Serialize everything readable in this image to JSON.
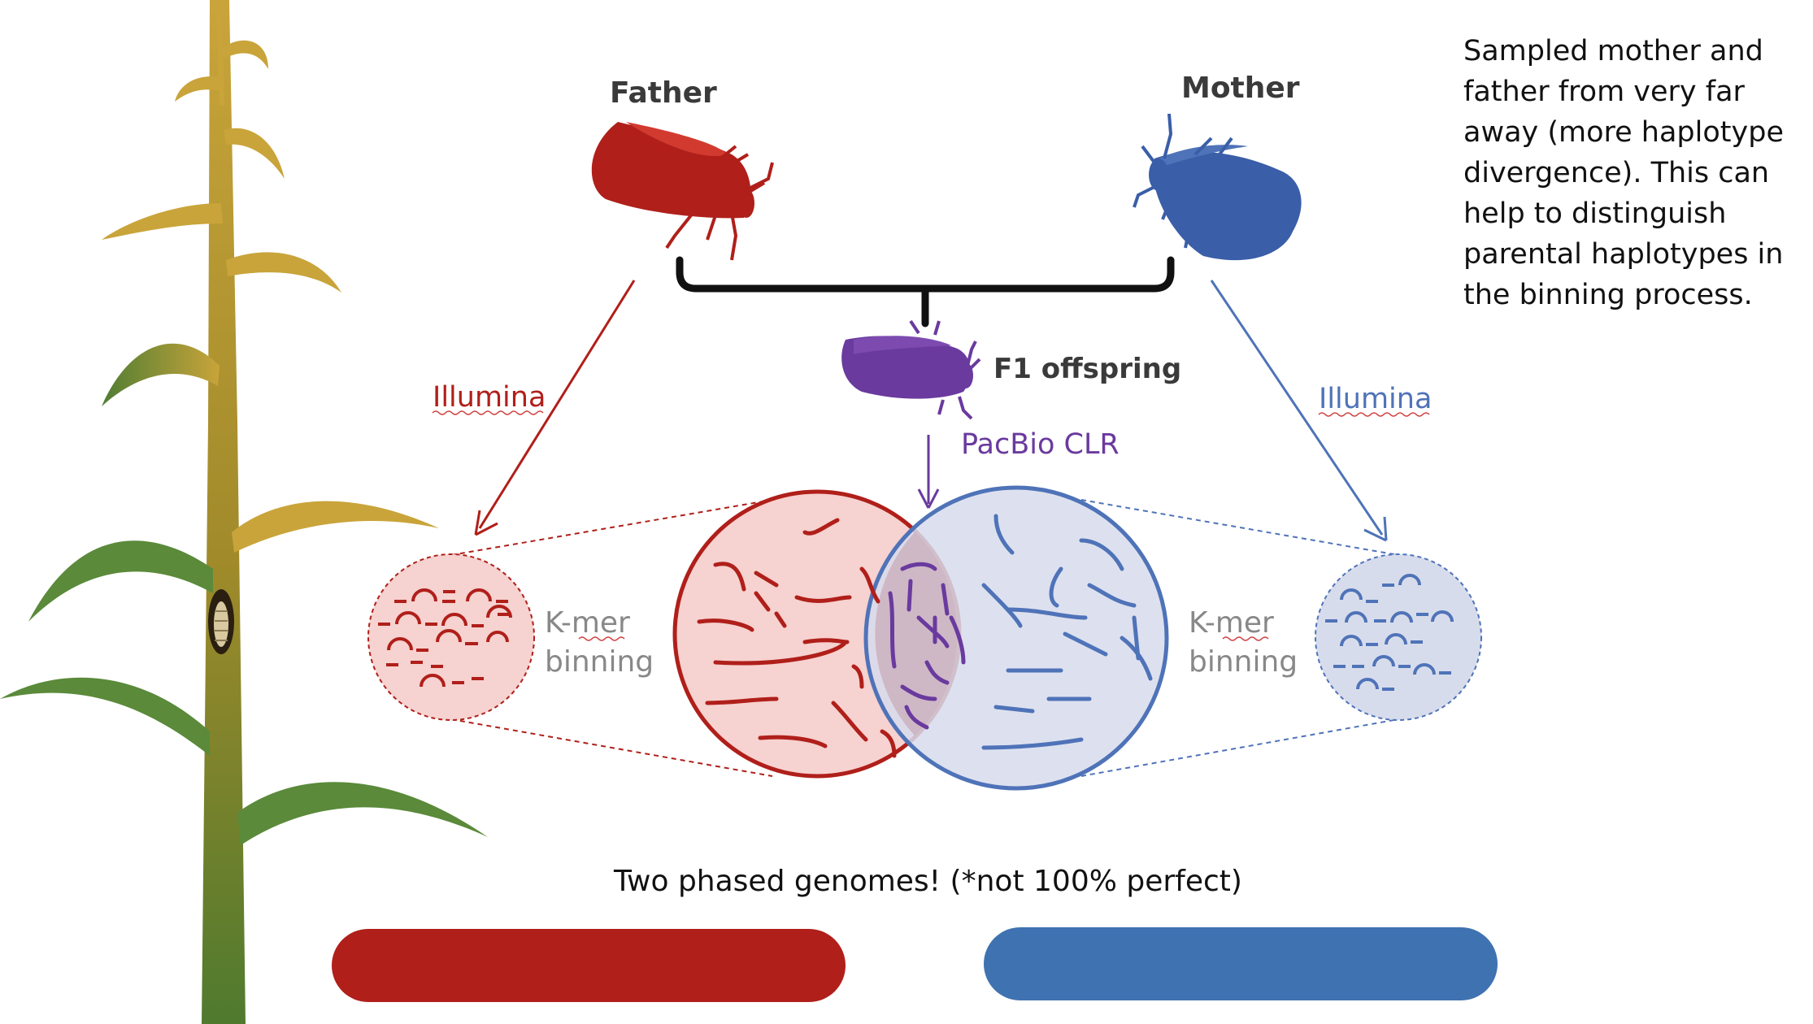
{
  "labels": {
    "father": "Father",
    "mother": "Mother",
    "f1": "F1 offspring",
    "illumina_left": "Illumina",
    "illumina_right": "Illumina",
    "pacbio": "PacBio CLR",
    "kmer_left_1": "K-mer",
    "kmer_left_2": "binning",
    "kmer_right_1": "K-mer",
    "kmer_right_2": "binning",
    "result": "Two phased genomes! (*not 100% perfect)"
  },
  "note": {
    "lines": [
      "Sampled mother and",
      "father from very far",
      "away (more haplotype",
      "divergence). This can",
      "help to distinguish",
      "parental haplotypes in",
      "the binning process."
    ]
  },
  "colors": {
    "father_red": "#b01f1a",
    "mother_blue": "#3a5ea8",
    "offspring_purple": "#6a3a9e",
    "stalk": "#b8902a",
    "leaf_green": "#5a8a3a",
    "leaf_gold": "#c9a43a"
  }
}
